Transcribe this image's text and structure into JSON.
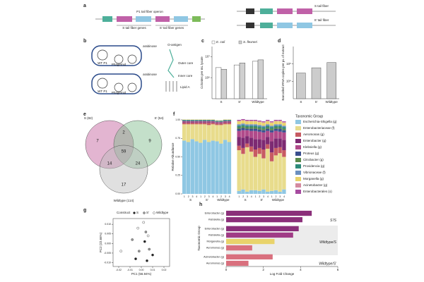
{
  "panel_letters": [
    "a",
    "b",
    "c",
    "d",
    "e",
    "f",
    "g",
    "h"
  ],
  "schematic": {
    "operon_title": "P1 tail fiber operon",
    "s_genes": "S tail fiber genes",
    "s2_genes": "S' tail fiber genes",
    "s_fiber": "S tail fiber",
    "s2_fiber": "S' tail fiber",
    "wt_p1": "WT P1",
    "phagemid": "Phagemid",
    "arabinose": "arabinose",
    "o_antigen": "O-antigen",
    "outer_core": "Outer core",
    "inner_core": "Inner core",
    "lipid_a": "Lipid A"
  },
  "venn": {
    "sets": [
      "S (82)",
      "S' (54)",
      "Wildtype (114)"
    ],
    "regions": [
      7,
      2,
      9,
      59,
      14,
      24,
      17
    ]
  },
  "chart_data": [
    {
      "type": "bar",
      "log": true,
      "ylabel": "Colonies per mL lysate",
      "categories": [
        "S",
        "S'",
        "Wildtype"
      ],
      "series": [
        {
          "name": "E. coli",
          "color": "#ffffff",
          "values": [
            3000000,
            4000000,
            6000000
          ]
        },
        {
          "name": "S. flexneri",
          "color": "#d0d0d0",
          "values": [
            2500000,
            5000000,
            7000000
          ]
        }
      ],
      "ylim": [
        100000,
        30000000
      ],
      "yticks": [
        {
          "value": 1000000,
          "label": "10⁶"
        },
        {
          "value": 10000000,
          "label": "10⁷"
        }
      ]
    },
    {
      "type": "bar",
      "log": true,
      "ylabel": "Barcoded rRNA copies per µL of extract",
      "categories": [
        "S",
        "S'",
        "Wildtype"
      ],
      "values": [
        30000,
        60000,
        120000
      ],
      "color": "#cccccc",
      "ylim": [
        1000,
        1000000
      ],
      "yticks": [
        {
          "value": 10000,
          "label": "10⁴"
        },
        {
          "value": 100000,
          "label": "10⁵"
        }
      ]
    },
    {
      "type": "stacked",
      "ylabel": "Relative Abundance",
      "legend_title": "Taxonomic Group",
      "group_labels": [
        "S",
        "S'",
        "Wildtype",
        "S",
        "S'",
        "Wildtype"
      ],
      "categories": [
        "1",
        "2",
        "3",
        "4",
        "1",
        "2",
        "3",
        "4",
        "1",
        "2",
        "3",
        "4",
        "1",
        "2",
        "3",
        "4",
        "1",
        "2",
        "3",
        "4",
        "1",
        "2",
        "3",
        "4"
      ],
      "ylim": [
        0,
        1
      ],
      "yticks": [
        {
          "value": 0,
          "label": "0.00"
        },
        {
          "value": 0.25,
          "label": "0.25"
        },
        {
          "value": 0.5,
          "label": "0.50"
        },
        {
          "value": 0.75,
          "label": "0.75"
        },
        {
          "value": 1,
          "label": "1.00"
        }
      ],
      "series": [
        {
          "name": "Escherichia-Shigella (g)",
          "color": "#8fc7e3",
          "values": [
            0.72,
            0.7,
            0.74,
            0.71,
            0.69,
            0.73,
            0.7,
            0.72,
            0.71,
            0.68,
            0.73,
            0.7,
            0.04,
            0.06,
            0.03,
            0.05,
            0.05,
            0.04,
            0.06,
            0.03,
            0.04,
            0.05,
            0.03,
            0.06
          ]
        },
        {
          "name": "Enterobacteriaceae (f)",
          "color": "#e8dc8c",
          "values": [
            0.22,
            0.24,
            0.2,
            0.23,
            0.25,
            0.21,
            0.23,
            0.22,
            0.22,
            0.25,
            0.21,
            0.24,
            0.55,
            0.48,
            0.6,
            0.52,
            0.45,
            0.5,
            0.42,
            0.58,
            0.4,
            0.47,
            0.52,
            0.44
          ]
        },
        {
          "name": "Aeromonas (g)",
          "color": "#c75b62",
          "values": [
            0.02,
            0.02,
            0.02,
            0.02,
            0.02,
            0.02,
            0.03,
            0.02,
            0.02,
            0.02,
            0.02,
            0.02,
            0.06,
            0.08,
            0.05,
            0.07,
            0.1,
            0.08,
            0.12,
            0.06,
            0.12,
            0.1,
            0.08,
            0.09
          ]
        },
        {
          "name": "Enterobacter (g)",
          "color": "#7d2a72",
          "values": [
            0.01,
            0.01,
            0.01,
            0.01,
            0.01,
            0.01,
            0.01,
            0.01,
            0.01,
            0.01,
            0.01,
            0.01,
            0.12,
            0.14,
            0.1,
            0.12,
            0.14,
            0.12,
            0.13,
            0.1,
            0.15,
            0.13,
            0.12,
            0.14
          ]
        },
        {
          "name": "Klebsiella (g)",
          "color": "#b04a8a",
          "values": [
            0.01,
            0.01,
            0.01,
            0.01,
            0.01,
            0.01,
            0.01,
            0.01,
            0.01,
            0.01,
            0.01,
            0.01,
            0.08,
            0.1,
            0.08,
            0.09,
            0.11,
            0.1,
            0.1,
            0.08,
            0.12,
            0.1,
            0.09,
            0.1
          ]
        },
        {
          "name": "Proteus (g)",
          "color": "#3a4f8f",
          "values": [
            0.005,
            0.005,
            0.005,
            0.005,
            0.005,
            0.005,
            0.005,
            0.005,
            0.005,
            0.005,
            0.005,
            0.005,
            0.03,
            0.03,
            0.02,
            0.03,
            0.03,
            0.03,
            0.03,
            0.03,
            0.03,
            0.03,
            0.04,
            0.03
          ]
        },
        {
          "name": "Citrobacter (g)",
          "color": "#5a8a4a",
          "values": [
            0.005,
            0.005,
            0.005,
            0.005,
            0.005,
            0.005,
            0.005,
            0.005,
            0.005,
            0.005,
            0.005,
            0.005,
            0.02,
            0.02,
            0.02,
            0.02,
            0.02,
            0.02,
            0.02,
            0.02,
            0.02,
            0.02,
            0.02,
            0.02
          ]
        },
        {
          "name": "Providencia (g)",
          "color": "#2e8b7a",
          "values": [
            0.005,
            0.005,
            0.005,
            0.005,
            0.005,
            0.005,
            0.005,
            0.005,
            0.005,
            0.005,
            0.005,
            0.005,
            0.02,
            0.02,
            0.02,
            0.02,
            0.02,
            0.02,
            0.02,
            0.02,
            0.02,
            0.02,
            0.02,
            0.02
          ]
        },
        {
          "name": "Vibrionaceae (f)",
          "color": "#6a8fbf",
          "values": [
            0.005,
            0.005,
            0.005,
            0.005,
            0.005,
            0.005,
            0.005,
            0.005,
            0.005,
            0.005,
            0.005,
            0.005,
            0.02,
            0.02,
            0.02,
            0.02,
            0.02,
            0.02,
            0.02,
            0.02,
            0.02,
            0.02,
            0.02,
            0.02
          ]
        },
        {
          "name": "Morganella (g)",
          "color": "#e9d36b",
          "values": [
            0.005,
            0.005,
            0.005,
            0.005,
            0.005,
            0.005,
            0.005,
            0.005,
            0.005,
            0.005,
            0.005,
            0.005,
            0.04,
            0.04,
            0.04,
            0.04,
            0.04,
            0.04,
            0.04,
            0.04,
            0.04,
            0.04,
            0.04,
            0.04
          ]
        },
        {
          "name": "Acinetobacter (g)",
          "color": "#d48aa0",
          "values": [
            0,
            0,
            0,
            0,
            0,
            0,
            0,
            0,
            0,
            0,
            0,
            0,
            0.01,
            0.01,
            0.01,
            0.01,
            0.01,
            0.01,
            0.01,
            0.01,
            0.01,
            0.01,
            0.01,
            0.01
          ]
        },
        {
          "name": "Enterobacterales (o)",
          "color": "#a64ba0",
          "values": [
            0,
            0,
            0,
            0,
            0,
            0,
            0,
            0,
            0,
            0,
            0,
            0,
            0.01,
            0.01,
            0.01,
            0.01,
            0.01,
            0.01,
            0.01,
            0.01,
            0.01,
            0.01,
            0.01,
            0.01
          ]
        }
      ]
    },
    {
      "type": "scatter",
      "legend_title": "Construct",
      "xlabel": "PC1 (56.94%)",
      "ylabel": "PC2 (22.66%)",
      "xlim": [
        -0.025,
        0.025
      ],
      "ylim": [
        -0.012,
        0.013
      ],
      "xticks": [
        {
          "value": -0.02,
          "label": "-0.02"
        },
        {
          "value": -0.01,
          "label": "-0.01"
        },
        {
          "value": 0,
          "label": "0.00"
        },
        {
          "value": 0.01,
          "label": "0.01"
        },
        {
          "value": 0.02,
          "label": "0.02"
        }
      ],
      "yticks": [
        {
          "value": -0.01,
          "label": "-0.010"
        },
        {
          "value": -0.005,
          "label": "-0.005"
        },
        {
          "value": 0,
          "label": "0.000"
        },
        {
          "value": 0.005,
          "label": "0.005"
        },
        {
          "value": 0.01,
          "label": "0.010"
        }
      ],
      "series": [
        {
          "name": "S",
          "color": "#222222",
          "x": [
            -0.005,
            0.003,
            0.01,
            0.005
          ],
          "values": [
            -0.008,
            0.001,
            -0.006,
            -0.009
          ]
        },
        {
          "name": "S'",
          "color": "#999999",
          "x": [
            -0.008,
            -0.002,
            0.004,
            0.007
          ],
          "values": [
            0.002,
            -0.004,
            0.006,
            -0.003
          ]
        },
        {
          "name": "Wildtype",
          "color": "#ffffff",
          "x": [
            -0.003,
            0.006,
            -0.018,
            0.002
          ],
          "values": [
            0.008,
            0.004,
            -0.004,
            0.011
          ]
        }
      ]
    },
    {
      "type": "barh",
      "xlabel": "Log Fold Change",
      "ylabel": "Taxonomic Group",
      "group_labels": [
        "S'/S",
        "Wildtype/S",
        "Wildtype/S'"
      ],
      "categories": [
        "Enterobacter (g)",
        "Klebsiella (g)",
        "Enterobacter (g)",
        "Klebsiella (g)",
        "Morganella (g)",
        "Aeromonas (g)",
        "Acinetobacter (g)",
        "Aeromonas (g)"
      ],
      "values": [
        4.6,
        4.1,
        3.9,
        3.6,
        2.6,
        1.4,
        2.5,
        1.2
      ],
      "colors": [
        "#8b2f7a",
        "#8b2f7a",
        "#8b2f7a",
        "#a03c86",
        "#e9d36b",
        "#d9707e",
        "#d9707e",
        "#d9707e"
      ],
      "xlim": [
        0,
        6
      ],
      "xticks": [
        0,
        2,
        4,
        6
      ]
    }
  ]
}
